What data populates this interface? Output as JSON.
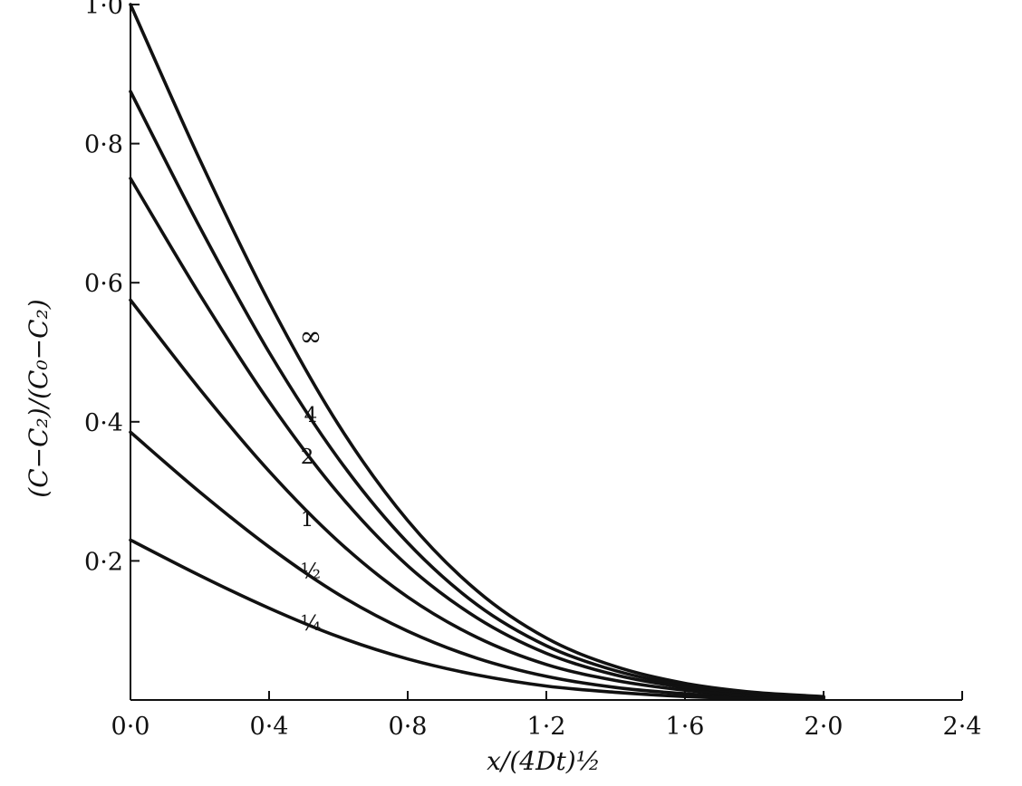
{
  "chart_data": {
    "type": "line",
    "xlabel": "x/(4Dt)½",
    "ylabel": "(C−C₂)/(C₀−C₂)",
    "xlim": [
      0,
      2.4
    ],
    "ylim": [
      0,
      1.0
    ],
    "x_ticks": [
      {
        "value": 0.0,
        "label": "0·0"
      },
      {
        "value": 0.4,
        "label": "0·4"
      },
      {
        "value": 0.8,
        "label": "0·8"
      },
      {
        "value": 1.2,
        "label": "1·2"
      },
      {
        "value": 1.6,
        "label": "1·6"
      },
      {
        "value": 2.0,
        "label": "2·0"
      },
      {
        "value": 2.4,
        "label": "2·4"
      }
    ],
    "y_ticks": [
      {
        "value": 0.2,
        "label": "0·2"
      },
      {
        "value": 0.4,
        "label": "0·4"
      },
      {
        "value": 0.6,
        "label": "0·6"
      },
      {
        "value": 0.8,
        "label": "0·8"
      },
      {
        "value": 1.0,
        "label": "1·0"
      }
    ],
    "grid": false,
    "legend": "none",
    "series": [
      {
        "name": "∞",
        "label_at": [
          0.52,
          0.51
        ],
        "x": [
          0,
          0.2,
          0.4,
          0.6,
          0.8,
          1.0,
          1.2,
          1.4,
          1.6,
          1.8,
          2.0
        ],
        "y": [
          1.0,
          0.777,
          0.572,
          0.396,
          0.258,
          0.157,
          0.089,
          0.048,
          0.024,
          0.011,
          0.005
        ]
      },
      {
        "name": "4",
        "label_at": [
          0.52,
          0.4
        ],
        "x": [
          0,
          0.2,
          0.4,
          0.6,
          0.8,
          1.0,
          1.2,
          1.4,
          1.6,
          1.8,
          2.0
        ],
        "y": [
          0.875,
          0.68,
          0.5,
          0.347,
          0.226,
          0.137,
          0.078,
          0.042,
          0.021,
          0.01,
          0.004
        ]
      },
      {
        "name": "2",
        "label_at": [
          0.51,
          0.34
        ],
        "x": [
          0,
          0.2,
          0.4,
          0.6,
          0.8,
          1.0,
          1.2,
          1.4,
          1.6,
          1.8,
          2.0
        ],
        "y": [
          0.75,
          0.583,
          0.429,
          0.297,
          0.193,
          0.118,
          0.067,
          0.036,
          0.018,
          0.008,
          0.004
        ]
      },
      {
        "name": "1",
        "label_at": [
          0.51,
          0.25
        ],
        "x": [
          0,
          0.2,
          0.4,
          0.6,
          0.8,
          1.0,
          1.2,
          1.4,
          1.6,
          1.8,
          2.0
        ],
        "y": [
          0.575,
          0.447,
          0.329,
          0.228,
          0.148,
          0.09,
          0.051,
          0.028,
          0.014,
          0.006,
          0.003
        ]
      },
      {
        "name": "½",
        "label_at": [
          0.52,
          0.175
        ],
        "x": [
          0,
          0.2,
          0.4,
          0.6,
          0.8,
          1.0,
          1.2,
          1.4,
          1.6,
          1.8,
          2.0
        ],
        "y": [
          0.385,
          0.299,
          0.22,
          0.152,
          0.099,
          0.06,
          0.034,
          0.018,
          0.009,
          0.004,
          0.002
        ]
      },
      {
        "name": "¼",
        "label_at": [
          0.52,
          0.1
        ],
        "x": [
          0,
          0.2,
          0.4,
          0.6,
          0.8,
          1.0,
          1.2,
          1.4,
          1.6,
          1.8,
          2.0
        ],
        "y": [
          0.23,
          0.179,
          0.132,
          0.091,
          0.059,
          0.036,
          0.02,
          0.011,
          0.005,
          0.002,
          0.001
        ]
      }
    ]
  }
}
